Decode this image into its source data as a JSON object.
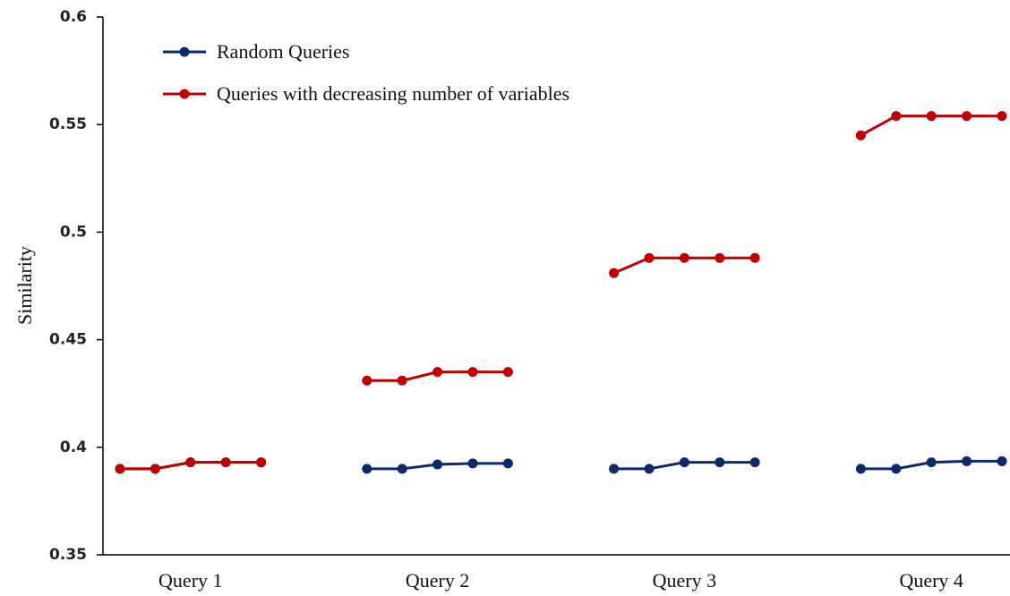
{
  "chart_data": {
    "type": "line",
    "y_label": "Similarity",
    "categories": [
      null,
      null,
      "Query 1",
      null,
      null,
      null,
      null,
      null,
      null,
      "Query 2",
      null,
      null,
      null,
      null,
      null,
      null,
      "Query 3",
      null,
      null,
      null,
      null,
      null,
      null,
      "Query 4",
      null,
      null
    ],
    "series": [
      {
        "name": "Random Queries",
        "color": "#0c2a6b",
        "values": [
          0.39,
          0.39,
          0.393,
          0.393,
          0.393,
          null,
          null,
          0.39,
          0.39,
          0.392,
          0.3925,
          0.3925,
          null,
          null,
          0.39,
          0.39,
          0.393,
          0.393,
          0.393,
          null,
          null,
          0.39,
          0.39,
          0.393,
          0.3935,
          0.3935
        ]
      },
      {
        "name": "Queries with decreasing number of variables",
        "color": "#c00000",
        "values": [
          0.39,
          0.39,
          0.393,
          0.393,
          0.393,
          null,
          null,
          0.431,
          0.431,
          0.435,
          0.435,
          0.435,
          null,
          null,
          0.481,
          0.488,
          0.488,
          0.488,
          0.488,
          null,
          null,
          0.545,
          0.554,
          0.554,
          0.554,
          0.554
        ]
      }
    ],
    "ylim": [
      0.35,
      0.6
    ],
    "yticks": [
      0.35,
      0.4,
      0.45,
      0.5,
      0.55,
      0.6
    ],
    "grid": false,
    "legend": "top-left"
  }
}
